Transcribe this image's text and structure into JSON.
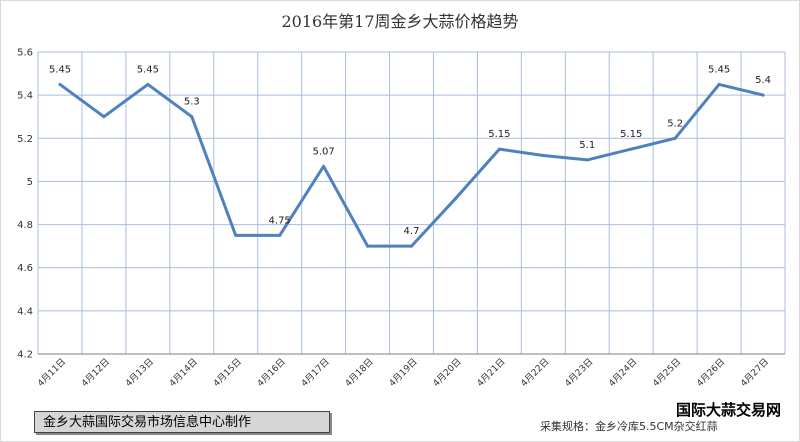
{
  "chart_data": {
    "type": "line",
    "title": "2016年第17周金乡大蒜价格趋势",
    "categories": [
      "4月11日",
      "4月12日",
      "4月13日",
      "4月14日",
      "4月15日",
      "4月16日",
      "4月17日",
      "4月18日",
      "4月19日",
      "4月20日",
      "4月21日",
      "4月22日",
      "4月23日",
      "4月24日",
      "4月25日",
      "4月26日",
      "4月27日"
    ],
    "series": [
      {
        "values": [
          5.45,
          5.3,
          5.45,
          5.3,
          4.75,
          4.75,
          5.07,
          4.7,
          4.7,
          4.92,
          5.15,
          5.12,
          5.1,
          5.15,
          5.2,
          5.45,
          5.4
        ],
        "labels": [
          "5.45",
          "",
          "5.45",
          "5.3",
          "",
          "4.75",
          "5.07",
          "",
          "4.7",
          "",
          "5.15",
          "",
          "5.1",
          "5.15",
          "5.2",
          "5.45",
          "5.4"
        ],
        "color": "#4f81bd"
      }
    ],
    "yticks": [
      "5.6",
      "5.4",
      "5.2",
      "5",
      "4.8",
      "4.6",
      "4.4",
      "4.2"
    ],
    "ylim": [
      4.2,
      5.6
    ],
    "xlabel": "",
    "ylabel": "",
    "grid": true,
    "legend": "none"
  },
  "footer": {
    "producer": "金乡大蒜国际交易市场信息中心制作",
    "spec": "采集规格：金乡冷库5.5CM杂交红蒜",
    "site": "国际大蒜交易网"
  }
}
